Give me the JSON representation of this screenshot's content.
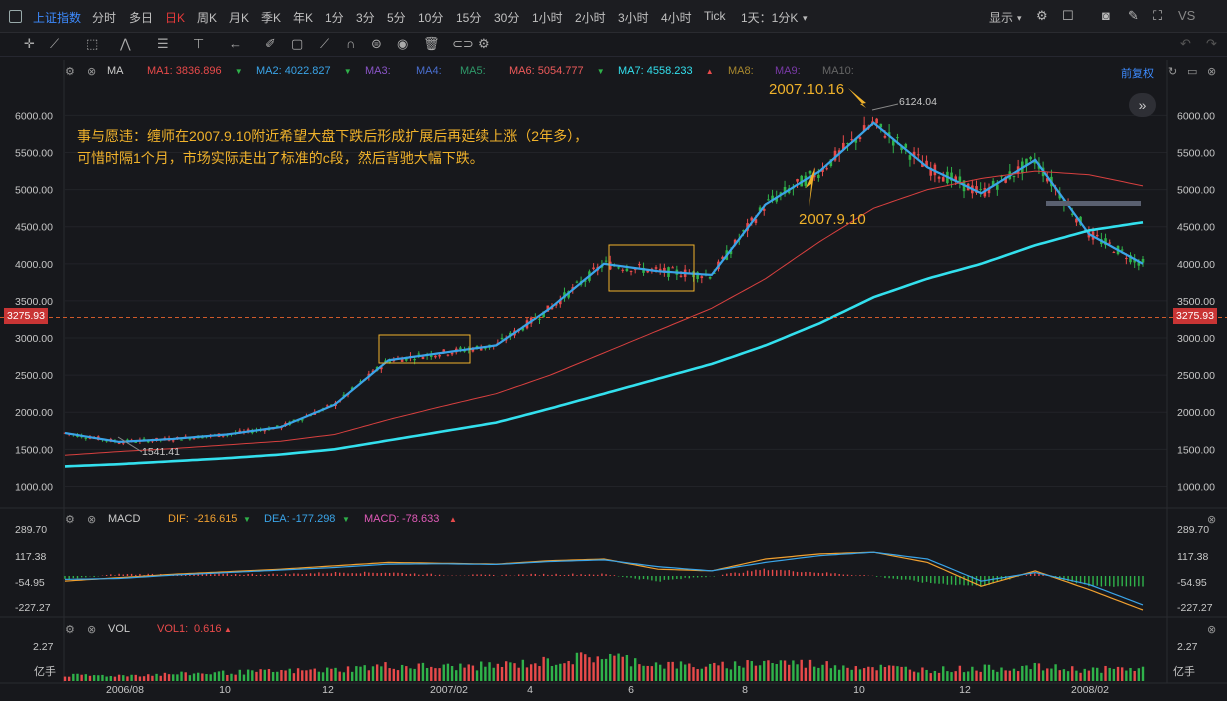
{
  "topbar": {
    "symbol": "上证指数",
    "timeframes": [
      "分时",
      "多日",
      "日K",
      "周K",
      "月K",
      "季K",
      "年K",
      "1分",
      "3分",
      "5分",
      "10分",
      "15分",
      "30分",
      "1小时",
      "2小时",
      "3小时",
      "4小时",
      "Tick",
      "1天：1分K"
    ],
    "active_timeframe": "日K",
    "display_label": "显示",
    "vs_label": "VS"
  },
  "main_pane": {
    "indicator": "MA",
    "ma": [
      {
        "label": "MA1:",
        "value": "3836.896",
        "color": "#e84a4a",
        "arrow": "down"
      },
      {
        "label": "MA2:",
        "value": "4022.827",
        "color": "#3aa4e8",
        "arrow": "down"
      },
      {
        "label": "MA3:",
        "value": "",
        "color": "#8a55c8",
        "arrow": ""
      },
      {
        "label": "MA4:",
        "value": "",
        "color": "#4a6fd0",
        "arrow": ""
      },
      {
        "label": "MA5:",
        "value": "",
        "color": "#2f9a6a",
        "arrow": ""
      },
      {
        "label": "MA6:",
        "value": "5054.777",
        "color": "#ef5b5b",
        "arrow": "down"
      },
      {
        "label": "MA7:",
        "value": "4558.233",
        "color": "#33e0ee",
        "arrow": "up"
      },
      {
        "label": "MA8:",
        "value": "",
        "color": "#a8882e",
        "arrow": ""
      },
      {
        "label": "MA9:",
        "value": "",
        "color": "#7a3aa8",
        "arrow": ""
      },
      {
        "label": "MA10:",
        "value": "",
        "color": "#666666",
        "arrow": ""
      }
    ],
    "adjust": "前复权",
    "y_ticks": [
      "6000.00",
      "5500.00",
      "5000.00",
      "4500.00",
      "4000.00",
      "3500.00",
      "3000.00",
      "2500.00",
      "2000.00",
      "1500.00",
      "1000.00"
    ],
    "current_price": "3275.93",
    "annotation_line1": "事与愿违：缠师在2007.9.10附近希望大盘下跌后形成扩展后再延续上涨（2年多），",
    "annotation_line2": "可惜时隔1个月，市场实际走出了标准的c段，然后背驰大幅下跌。",
    "label_peak_date": "2007.10.16",
    "label_sep_date": "2007.9.10",
    "peak_value": "6124.04",
    "low_value": "1541.41"
  },
  "macd_pane": {
    "name": "MACD",
    "dif_label": "DIF:",
    "dif": "-216.615",
    "dea_label": "DEA:",
    "dea": "-177.298",
    "macd_label": "MACD:",
    "macd": "-78.633",
    "y_ticks": [
      "289.70",
      "117.38",
      "-54.95",
      "-227.27"
    ]
  },
  "vol_pane": {
    "name": "VOL",
    "vol_label": "VOL1:",
    "vol": "0.616",
    "y_top": "2.27",
    "unit": "亿手"
  },
  "x_axis": [
    "2006/08",
    "10",
    "12",
    "2007/02",
    "4",
    "6",
    "8",
    "10",
    "12",
    "2008/02"
  ],
  "colors": {
    "up": "#e84a4a",
    "down": "#2fb24a",
    "accent": "#f0b22b",
    "blue": "#3d8bff"
  },
  "chart_data": {
    "type": "line",
    "title": "",
    "x": [
      "2006/07",
      "2006/08",
      "2006/09",
      "2006/10",
      "2006/11",
      "2006/12",
      "2007/01",
      "2007/02",
      "2007/03",
      "2007/04",
      "2007/05",
      "2007/06",
      "2007/07",
      "2007/08",
      "2007/09",
      "2007/10",
      "2007/11",
      "2007/12",
      "2008/01",
      "2008/02",
      "2008/03"
    ],
    "series": [
      {
        "name": "MA2",
        "values": [
          1720,
          1600,
          1640,
          1700,
          1800,
          2100,
          2700,
          2800,
          2900,
          3400,
          4000,
          3900,
          3850,
          4800,
          5250,
          5900,
          5300,
          4950,
          5400,
          4400,
          4000
        ]
      },
      {
        "name": "MA6",
        "values": [
          1420,
          1470,
          1510,
          1560,
          1610,
          1700,
          1900,
          2080,
          2250,
          2500,
          2800,
          3100,
          3400,
          3800,
          4300,
          4750,
          5000,
          5150,
          5250,
          5200,
          5050
        ]
      },
      {
        "name": "MA7",
        "values": [
          1270,
          1300,
          1340,
          1380,
          1430,
          1500,
          1620,
          1740,
          1860,
          2050,
          2250,
          2450,
          2650,
          2900,
          3200,
          3550,
          3800,
          4000,
          4250,
          4450,
          4560
        ]
      }
    ],
    "ylim": [
      750,
      6450
    ]
  }
}
